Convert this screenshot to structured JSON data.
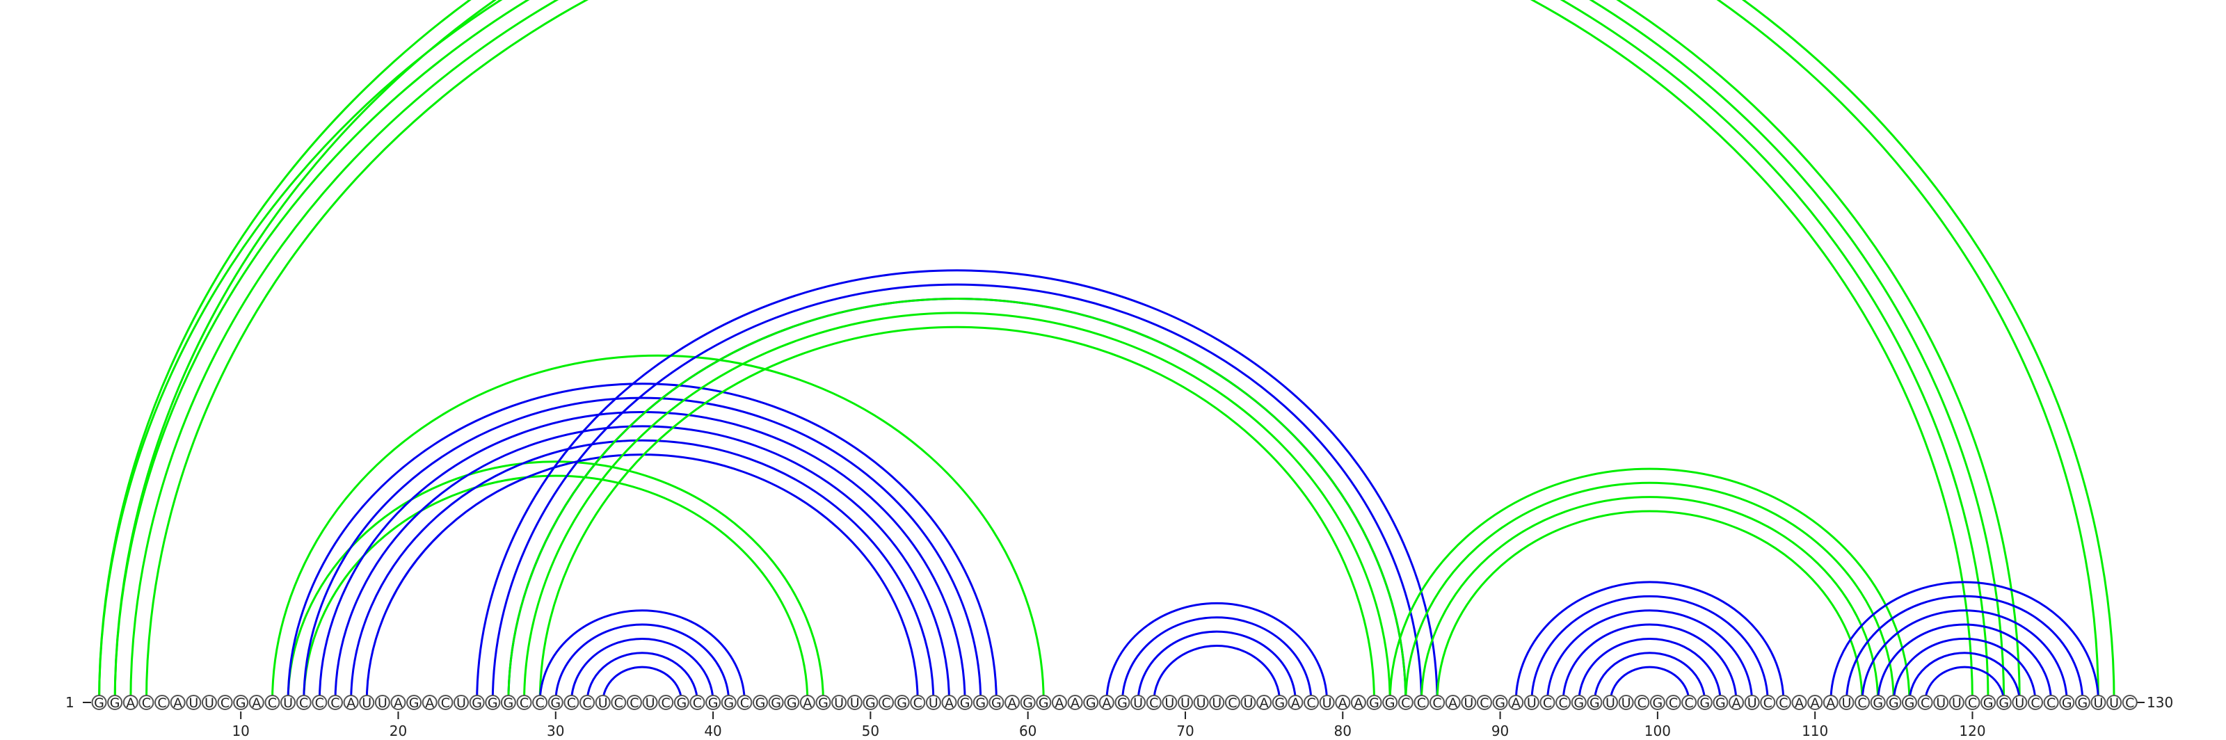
{
  "sequence": "GGACCAUUCGACUCCCAUUAGACUGGGCCGCCUCCUCGCGGCGGGAGUUGCGCUAGGGAGGAAGAGUCUUUUCUAGACUAAGGCCCAUCGAUCCGGUUCGCCGGAUCCAAAUCGGGCUUCGGUCCGGUUC",
  "start_label": "1",
  "end_label": "130",
  "tick_labels": [
    "10",
    "20",
    "30",
    "40",
    "50",
    "60",
    "70",
    "80",
    "90",
    "100",
    "110",
    "120"
  ],
  "colors": {
    "blue": "#0000ee",
    "green": "#00ee00"
  },
  "helices": [
    {
      "color": "green",
      "pairs": [
        [
          1,
          123
        ],
        [
          2,
          122
        ],
        [
          3,
          121
        ],
        [
          4,
          120
        ]
      ]
    },
    {
      "color": "green",
      "pairs": [
        [
          1,
          129
        ],
        [
          2,
          128
        ]
      ]
    },
    {
      "color": "green",
      "pairs": [
        [
          12,
          61
        ]
      ]
    },
    {
      "color": "green",
      "pairs": [
        [
          13,
          47
        ],
        [
          14,
          46
        ]
      ]
    },
    {
      "color": "blue",
      "pairs": [
        [
          13,
          58
        ],
        [
          14,
          57
        ],
        [
          15,
          56
        ],
        [
          16,
          55
        ],
        [
          17,
          54
        ],
        [
          18,
          53
        ]
      ]
    },
    {
      "color": "blue",
      "pairs": [
        [
          25,
          86
        ],
        [
          26,
          85
        ],
        [
          27,
          84
        ]
      ]
    },
    {
      "color": "green",
      "pairs": [
        [
          27,
          84
        ],
        [
          28,
          83
        ],
        [
          29,
          82
        ]
      ]
    },
    {
      "color": "blue",
      "pairs": [
        [
          29,
          42
        ],
        [
          30,
          41
        ],
        [
          31,
          40
        ],
        [
          32,
          39
        ],
        [
          33,
          38
        ]
      ]
    },
    {
      "color": "blue",
      "pairs": [
        [
          65,
          79
        ],
        [
          66,
          78
        ],
        [
          67,
          77
        ],
        [
          68,
          76
        ]
      ]
    },
    {
      "color": "green",
      "pairs": [
        [
          83,
          116
        ],
        [
          84,
          115
        ],
        [
          85,
          114
        ],
        [
          86,
          113
        ]
      ]
    },
    {
      "color": "blue",
      "pairs": [
        [
          91,
          108
        ],
        [
          92,
          107
        ],
        [
          93,
          106
        ],
        [
          94,
          105
        ],
        [
          95,
          104
        ],
        [
          96,
          103
        ],
        [
          97,
          102
        ]
      ]
    },
    {
      "color": "blue",
      "pairs": [
        [
          111,
          128
        ],
        [
          112,
          127
        ],
        [
          113,
          126
        ],
        [
          114,
          125
        ],
        [
          115,
          124
        ],
        [
          116,
          123
        ],
        [
          117,
          122
        ]
      ]
    }
  ]
}
